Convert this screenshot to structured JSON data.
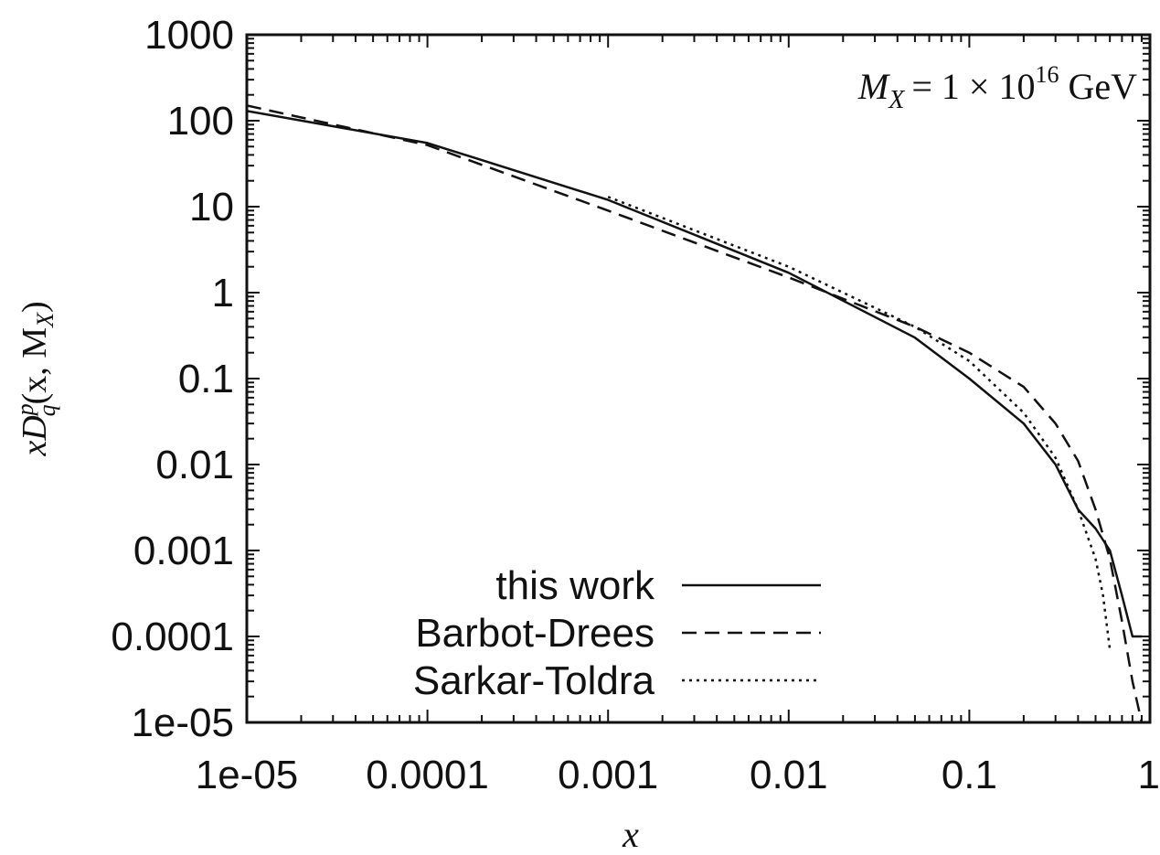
{
  "chart_data": {
    "type": "line",
    "title": "",
    "annotation": {
      "lhs": "M",
      "lhs_sub": "X",
      "rhs": "= 1 × 10",
      "exp": "16",
      "unit": "GeV"
    },
    "xlabel": "x",
    "ylabel": {
      "main": "xD",
      "sup": "p",
      "sub": "q",
      "args": "(x, M",
      "args_sub": "X",
      "close": ")"
    },
    "xscale": "log",
    "yscale": "log",
    "xlim": [
      1e-05,
      1
    ],
    "ylim": [
      1e-05,
      1000
    ],
    "x_ticks": [
      {
        "value": 1e-05,
        "label": "1e-05"
      },
      {
        "value": 0.0001,
        "label": "0.0001"
      },
      {
        "value": 0.001,
        "label": "0.001"
      },
      {
        "value": 0.01,
        "label": "0.01"
      },
      {
        "value": 0.1,
        "label": "0.1"
      },
      {
        "value": 1,
        "label": "1"
      }
    ],
    "y_ticks": [
      {
        "value": 1e-05,
        "label": "1e-05"
      },
      {
        "value": 0.0001,
        "label": "0.0001"
      },
      {
        "value": 0.001,
        "label": "0.001"
      },
      {
        "value": 0.01,
        "label": "0.01"
      },
      {
        "value": 0.1,
        "label": "0.1"
      },
      {
        "value": 1,
        "label": "1"
      },
      {
        "value": 10,
        "label": "10"
      },
      {
        "value": 100,
        "label": "100"
      },
      {
        "value": 1000,
        "label": "1000"
      }
    ],
    "grid": false,
    "legend_position": "bottom-center",
    "series": [
      {
        "name": "this work",
        "style": "solid",
        "x": [
          1e-05,
          0.0001,
          0.001,
          0.01,
          0.05,
          0.1,
          0.2,
          0.3,
          0.4,
          0.5,
          0.6,
          0.7,
          0.8,
          0.9
        ],
        "y": [
          130,
          55,
          12,
          1.7,
          0.3,
          0.1,
          0.03,
          0.01,
          0.003,
          0.0018,
          0.001,
          0.0003,
          0.0001,
          0.0001
        ]
      },
      {
        "name": "Barbot-Drees",
        "style": "dashed",
        "x": [
          1e-05,
          0.0001,
          0.001,
          0.01,
          0.05,
          0.1,
          0.2,
          0.3,
          0.4,
          0.5,
          0.6,
          0.7,
          0.8,
          0.9
        ],
        "y": [
          150,
          52,
          9,
          1.5,
          0.4,
          0.2,
          0.08,
          0.03,
          0.011,
          0.003,
          0.0008,
          0.00015,
          3e-05,
          1e-05
        ]
      },
      {
        "name": "Sarkar-Toldra",
        "style": "dotted",
        "x": [
          0.001,
          0.01,
          0.05,
          0.1,
          0.2,
          0.3,
          0.4,
          0.5,
          0.55,
          0.6
        ],
        "y": [
          13,
          2,
          0.4,
          0.16,
          0.04,
          0.012,
          0.003,
          0.0008,
          0.0003,
          7e-05
        ]
      }
    ]
  }
}
